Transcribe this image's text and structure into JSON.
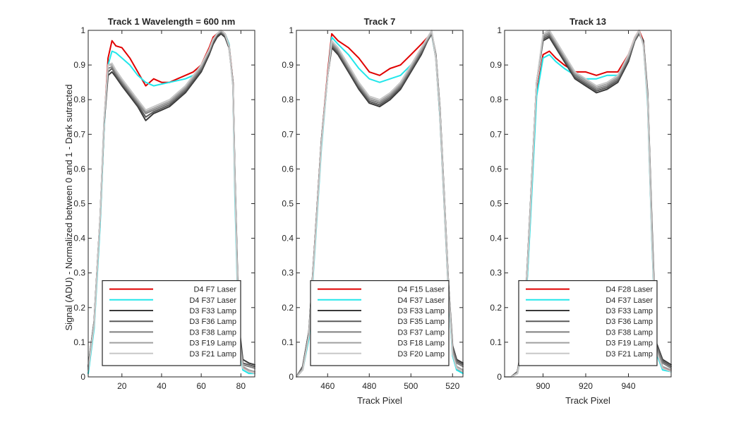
{
  "figure": {
    "ylabel": "Signal (ADU) - Normalized between 0 and 1 - Dark sutracted",
    "colors": {
      "red": "#e00000",
      "cyan": "#22e6ea",
      "g1": "#3a3a3a",
      "g2": "#5a5a5a",
      "g3": "#7f7f7f",
      "g4": "#a0a0a0",
      "g5": "#c8c8c8"
    }
  },
  "chart_data": [
    {
      "type": "line",
      "title": "Track 1 Wavelength = 600 nm",
      "xlabel": "",
      "ylabel": "Signal (ADU) - Normalized between 0 and 1 - Dark sutracted",
      "xlim": [
        3,
        87
      ],
      "ylim": [
        0,
        1
      ],
      "xticks": [
        20,
        40,
        60,
        80
      ],
      "yticks": [
        0,
        0.1,
        0.2,
        0.3,
        0.4,
        0.5,
        0.6,
        0.7,
        0.8,
        0.9,
        1
      ],
      "ytick_labels": [
        "0",
        "0.1",
        "0.2",
        "0.3",
        "0.4",
        "0.5",
        "0.6",
        "0.7",
        "0.8",
        "0.9",
        "1"
      ],
      "legend": "bottom-center",
      "x": [
        3,
        6,
        9,
        11,
        13,
        15,
        17,
        20,
        24,
        28,
        32,
        36,
        40,
        44,
        48,
        52,
        56,
        60,
        64,
        66,
        68,
        70,
        72,
        74,
        76,
        77,
        79,
        81,
        84,
        87
      ],
      "series": [
        {
          "name": "D4 F7 Laser",
          "color": "red",
          "values": [
            0.02,
            0.15,
            0.45,
            0.73,
            0.92,
            0.97,
            0.955,
            0.95,
            0.92,
            0.88,
            0.84,
            0.86,
            0.85,
            0.85,
            0.86,
            0.87,
            0.88,
            0.9,
            0.95,
            0.98,
            0.99,
            1.0,
            0.99,
            0.96,
            0.85,
            0.55,
            0.12,
            0.03,
            0.015,
            0.01
          ]
        },
        {
          "name": "D4 F37 Laser",
          "color": "cyan",
          "values": [
            0.01,
            0.14,
            0.44,
            0.72,
            0.9,
            0.94,
            0.935,
            0.92,
            0.9,
            0.87,
            0.85,
            0.84,
            0.845,
            0.85,
            0.855,
            0.86,
            0.87,
            0.89,
            0.94,
            0.97,
            0.99,
            0.995,
            0.99,
            0.96,
            0.84,
            0.52,
            0.1,
            0.02,
            0.01,
            0.01
          ]
        },
        {
          "name": "D3 F33 Lamp",
          "color": "g1",
          "values": [
            0.03,
            0.16,
            0.46,
            0.73,
            0.87,
            0.88,
            0.865,
            0.84,
            0.81,
            0.78,
            0.74,
            0.76,
            0.77,
            0.78,
            0.8,
            0.82,
            0.85,
            0.88,
            0.93,
            0.96,
            0.98,
            0.99,
            0.98,
            0.95,
            0.85,
            0.58,
            0.15,
            0.05,
            0.04,
            0.035
          ]
        },
        {
          "name": "D3 F36 Lamp",
          "color": "g2",
          "values": [
            0.03,
            0.16,
            0.46,
            0.73,
            0.88,
            0.89,
            0.87,
            0.845,
            0.815,
            0.785,
            0.75,
            0.765,
            0.775,
            0.785,
            0.805,
            0.825,
            0.855,
            0.885,
            0.935,
            0.965,
            0.985,
            0.995,
            0.985,
            0.955,
            0.85,
            0.57,
            0.14,
            0.04,
            0.035,
            0.03
          ]
        },
        {
          "name": "D3 F38 Lamp",
          "color": "g3",
          "values": [
            0.025,
            0.16,
            0.46,
            0.74,
            0.89,
            0.895,
            0.875,
            0.85,
            0.82,
            0.79,
            0.76,
            0.77,
            0.78,
            0.79,
            0.81,
            0.83,
            0.86,
            0.89,
            0.94,
            0.97,
            0.99,
            0.995,
            0.985,
            0.955,
            0.85,
            0.57,
            0.13,
            0.035,
            0.03,
            0.025
          ]
        },
        {
          "name": "D3 F19 Lamp",
          "color": "g4",
          "values": [
            0.02,
            0.15,
            0.46,
            0.74,
            0.9,
            0.9,
            0.88,
            0.855,
            0.825,
            0.795,
            0.765,
            0.775,
            0.785,
            0.795,
            0.815,
            0.835,
            0.865,
            0.895,
            0.94,
            0.97,
            0.99,
            1.0,
            0.99,
            0.955,
            0.84,
            0.56,
            0.12,
            0.03,
            0.02,
            0.015
          ]
        },
        {
          "name": "D3 F21 Lamp",
          "color": "g5",
          "values": [
            0.02,
            0.15,
            0.46,
            0.74,
            0.9,
            0.905,
            0.885,
            0.86,
            0.83,
            0.8,
            0.77,
            0.78,
            0.79,
            0.8,
            0.82,
            0.84,
            0.87,
            0.9,
            0.945,
            0.975,
            0.99,
            1.0,
            0.99,
            0.955,
            0.84,
            0.55,
            0.11,
            0.025,
            0.015,
            0.01
          ]
        }
      ]
    },
    {
      "type": "line",
      "title": "Track 7",
      "xlabel": "Track Pixel",
      "ylabel": "",
      "xlim": [
        445,
        525
      ],
      "ylim": [
        0,
        1
      ],
      "xticks": [
        460,
        480,
        500,
        520
      ],
      "yticks": [
        0,
        0.1,
        0.2,
        0.3,
        0.4,
        0.5,
        0.6,
        0.7,
        0.8,
        0.9,
        1
      ],
      "ytick_labels": [
        "0",
        "0.1",
        "0.2",
        "0.3",
        "0.4",
        "0.5",
        "0.6",
        "0.7",
        "0.8",
        "0.9",
        "1"
      ],
      "legend": "bottom-center",
      "x": [
        445,
        448,
        451,
        454,
        457,
        460,
        462,
        465,
        470,
        475,
        480,
        485,
        490,
        495,
        500,
        505,
        508,
        510,
        512,
        514,
        516,
        518,
        520,
        522,
        525
      ],
      "series": [
        {
          "name": "D4 F15 Laser",
          "color": "red",
          "values": [
            0.0,
            0.02,
            0.12,
            0.4,
            0.68,
            0.88,
            0.99,
            0.97,
            0.95,
            0.92,
            0.88,
            0.87,
            0.89,
            0.9,
            0.93,
            0.96,
            0.98,
            0.99,
            0.92,
            0.75,
            0.5,
            0.25,
            0.07,
            0.02,
            0.015
          ]
        },
        {
          "name": "D4 F37 Laser",
          "color": "cyan",
          "values": [
            0.0,
            0.02,
            0.11,
            0.38,
            0.66,
            0.87,
            0.98,
            0.96,
            0.93,
            0.89,
            0.86,
            0.85,
            0.86,
            0.87,
            0.9,
            0.94,
            0.97,
            0.99,
            0.92,
            0.75,
            0.5,
            0.25,
            0.06,
            0.02,
            0.01
          ]
        },
        {
          "name": "D3 F33 Lamp",
          "color": "g1",
          "values": [
            0.0,
            0.03,
            0.13,
            0.4,
            0.68,
            0.87,
            0.95,
            0.93,
            0.88,
            0.83,
            0.79,
            0.78,
            0.8,
            0.83,
            0.88,
            0.93,
            0.97,
            0.99,
            0.93,
            0.77,
            0.52,
            0.27,
            0.09,
            0.05,
            0.04
          ]
        },
        {
          "name": "D3 F35 Lamp",
          "color": "g2",
          "values": [
            0.0,
            0.03,
            0.13,
            0.4,
            0.68,
            0.87,
            0.955,
            0.935,
            0.885,
            0.835,
            0.795,
            0.785,
            0.805,
            0.835,
            0.885,
            0.935,
            0.97,
            0.99,
            0.93,
            0.77,
            0.52,
            0.27,
            0.085,
            0.045,
            0.035
          ]
        },
        {
          "name": "D3 F37 Lamp",
          "color": "g3",
          "values": [
            0.0,
            0.025,
            0.12,
            0.4,
            0.68,
            0.87,
            0.96,
            0.94,
            0.89,
            0.84,
            0.8,
            0.79,
            0.81,
            0.84,
            0.89,
            0.94,
            0.975,
            0.995,
            0.93,
            0.76,
            0.51,
            0.26,
            0.08,
            0.04,
            0.03
          ]
        },
        {
          "name": "D3 F18 Lamp",
          "color": "g4",
          "values": [
            0.0,
            0.02,
            0.12,
            0.39,
            0.67,
            0.87,
            0.965,
            0.945,
            0.895,
            0.845,
            0.805,
            0.795,
            0.815,
            0.845,
            0.895,
            0.945,
            0.975,
            0.995,
            0.92,
            0.76,
            0.51,
            0.26,
            0.07,
            0.03,
            0.02
          ]
        },
        {
          "name": "D3 F20 Lamp",
          "color": "g5",
          "values": [
            0.0,
            0.02,
            0.12,
            0.39,
            0.67,
            0.87,
            0.97,
            0.95,
            0.9,
            0.85,
            0.81,
            0.8,
            0.82,
            0.85,
            0.9,
            0.95,
            0.98,
            1.0,
            0.92,
            0.76,
            0.51,
            0.26,
            0.065,
            0.025,
            0.015
          ]
        }
      ]
    },
    {
      "type": "line",
      "title": "Track 13",
      "xlabel": "Track Pixel",
      "ylabel": "",
      "xlim": [
        882,
        960
      ],
      "ylim": [
        0,
        1
      ],
      "xticks": [
        900,
        920,
        940
      ],
      "yticks": [
        0,
        0.1,
        0.2,
        0.3,
        0.4,
        0.5,
        0.6,
        0.7,
        0.8,
        0.9,
        1
      ],
      "ytick_labels": [
        "0",
        "0.1",
        "0.2",
        "0.3",
        "0.4",
        "0.5",
        "0.6",
        "0.7",
        "0.8",
        "0.9",
        "1"
      ],
      "legend": "bottom-center",
      "x": [
        882,
        885,
        888,
        891,
        894,
        897,
        900,
        903,
        906,
        910,
        915,
        920,
        925,
        930,
        935,
        940,
        943,
        945,
        947,
        949,
        951,
        953,
        956,
        960
      ],
      "series": [
        {
          "name": "D4 F28 Laser",
          "color": "red",
          "values": [
            0.0,
            0.0,
            0.01,
            0.1,
            0.45,
            0.82,
            0.93,
            0.94,
            0.92,
            0.9,
            0.88,
            0.88,
            0.87,
            0.88,
            0.88,
            0.93,
            0.98,
            1.0,
            0.97,
            0.8,
            0.4,
            0.08,
            0.025,
            0.02
          ]
        },
        {
          "name": "D4 F37 Laser",
          "color": "cyan",
          "values": [
            0.0,
            0.0,
            0.01,
            0.1,
            0.44,
            0.81,
            0.92,
            0.93,
            0.91,
            0.89,
            0.87,
            0.86,
            0.86,
            0.87,
            0.87,
            0.92,
            0.975,
            0.995,
            0.96,
            0.79,
            0.39,
            0.07,
            0.02,
            0.015
          ]
        },
        {
          "name": "D3 F33 Lamp",
          "color": "g1",
          "values": [
            0.0,
            0.0,
            0.015,
            0.12,
            0.48,
            0.85,
            0.97,
            0.98,
            0.95,
            0.91,
            0.86,
            0.84,
            0.82,
            0.83,
            0.85,
            0.91,
            0.97,
            0.99,
            0.97,
            0.82,
            0.44,
            0.1,
            0.05,
            0.035
          ]
        },
        {
          "name": "D3 F36 Lamp",
          "color": "g2",
          "values": [
            0.0,
            0.0,
            0.015,
            0.12,
            0.48,
            0.85,
            0.975,
            0.985,
            0.955,
            0.915,
            0.865,
            0.845,
            0.825,
            0.835,
            0.855,
            0.915,
            0.97,
            0.99,
            0.965,
            0.815,
            0.43,
            0.095,
            0.045,
            0.03
          ]
        },
        {
          "name": "D3 F38 Lamp",
          "color": "g3",
          "values": [
            0.0,
            0.0,
            0.012,
            0.12,
            0.48,
            0.85,
            0.98,
            0.99,
            0.96,
            0.92,
            0.87,
            0.85,
            0.83,
            0.84,
            0.86,
            0.92,
            0.975,
            0.995,
            0.96,
            0.81,
            0.42,
            0.09,
            0.04,
            0.025
          ]
        },
        {
          "name": "D3 F19 Lamp",
          "color": "g4",
          "values": [
            0.0,
            0.0,
            0.01,
            0.11,
            0.47,
            0.85,
            0.985,
            0.995,
            0.965,
            0.925,
            0.875,
            0.855,
            0.835,
            0.845,
            0.865,
            0.925,
            0.975,
            1.0,
            0.96,
            0.8,
            0.41,
            0.08,
            0.03,
            0.02
          ]
        },
        {
          "name": "D3 F21 Lamp",
          "color": "g5",
          "values": [
            0.0,
            0.0,
            0.01,
            0.11,
            0.47,
            0.85,
            0.99,
            1.0,
            0.97,
            0.93,
            0.88,
            0.86,
            0.84,
            0.85,
            0.87,
            0.93,
            0.98,
            1.0,
            0.955,
            0.8,
            0.4,
            0.075,
            0.025,
            0.015
          ]
        }
      ]
    }
  ]
}
